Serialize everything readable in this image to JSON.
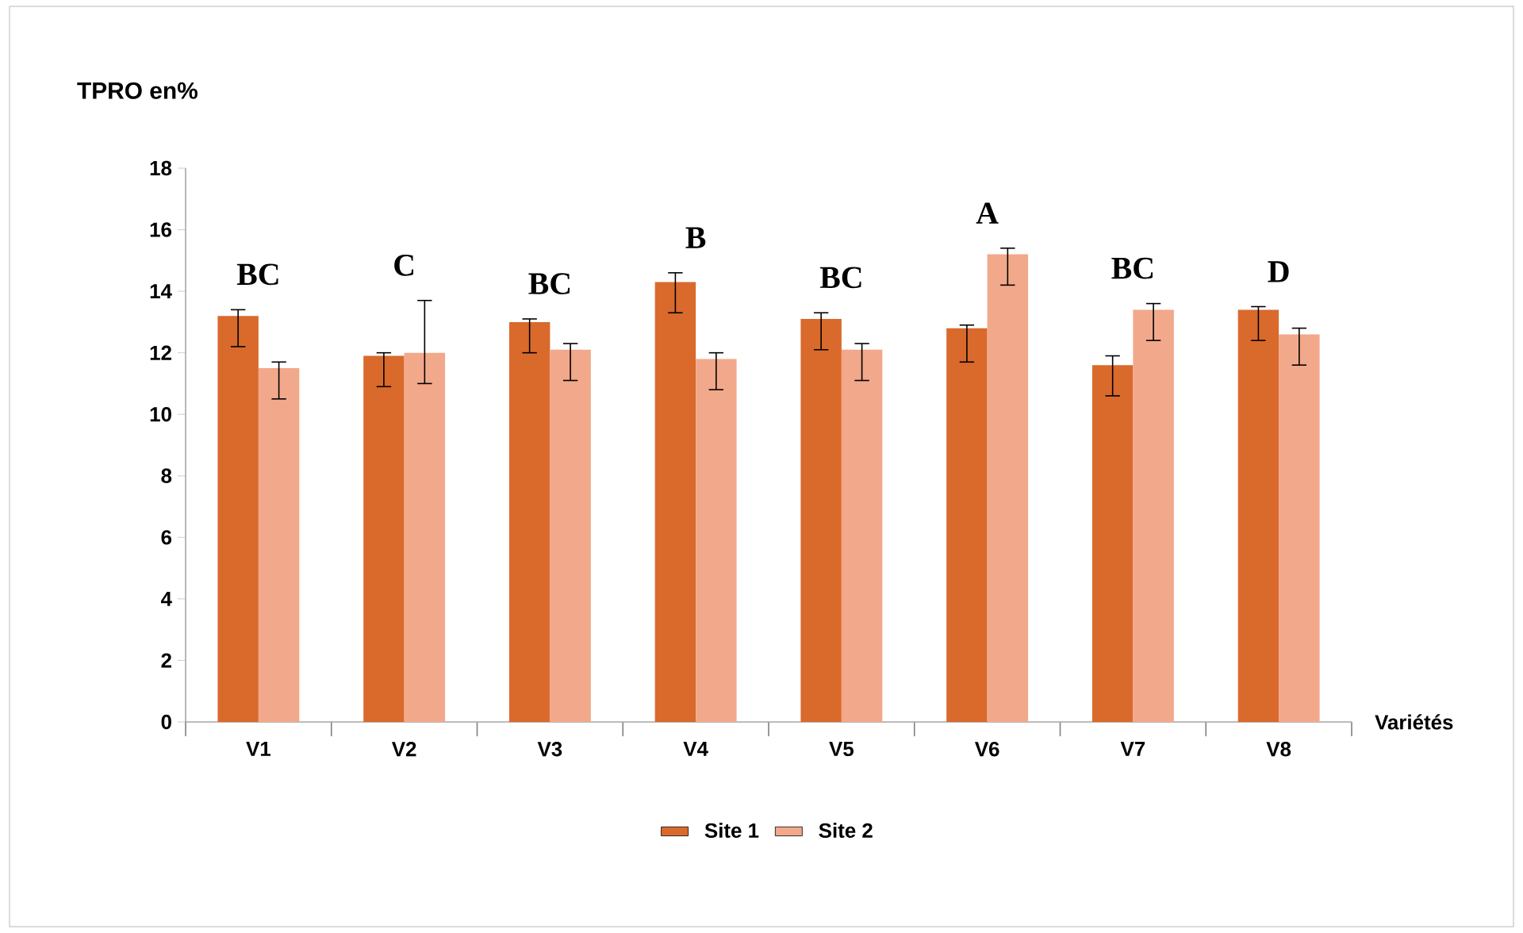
{
  "chart_data": {
    "type": "bar",
    "ylabel": "TPRO en%",
    "xlabel": "Variétés",
    "categories": [
      "V1",
      "V2",
      "V3",
      "V4",
      "V5",
      "V6",
      "V7",
      "V8"
    ],
    "series": [
      {
        "name": "Site 1",
        "color": "#d96a2c",
        "values": [
          13.2,
          11.9,
          13.0,
          14.3,
          13.1,
          12.8,
          11.6,
          13.4
        ],
        "errors": [
          [
            12.2,
            13.4
          ],
          [
            10.9,
            12.0
          ],
          [
            12.0,
            13.1
          ],
          [
            13.3,
            14.6
          ],
          [
            12.1,
            13.3
          ],
          [
            11.7,
            12.9
          ],
          [
            10.6,
            11.9
          ],
          [
            12.4,
            13.5
          ]
        ]
      },
      {
        "name": "Site 2",
        "color": "#f2a88a",
        "values": [
          11.5,
          12.0,
          12.1,
          11.8,
          12.1,
          15.2,
          13.4,
          12.6
        ],
        "errors": [
          [
            10.5,
            11.7
          ],
          [
            11.0,
            13.7
          ],
          [
            11.1,
            12.3
          ],
          [
            10.8,
            12.0
          ],
          [
            11.1,
            12.3
          ],
          [
            14.2,
            15.4
          ],
          [
            12.4,
            13.6
          ],
          [
            11.6,
            12.8
          ]
        ]
      }
    ],
    "ylim": [
      0,
      18
    ],
    "yticks": [
      0,
      2,
      4,
      6,
      8,
      10,
      12,
      14,
      16,
      18
    ],
    "legend": "bottom",
    "annotations": [
      "BC",
      "C",
      "BC",
      "B",
      "BC",
      "A",
      "BC",
      "D"
    ]
  }
}
